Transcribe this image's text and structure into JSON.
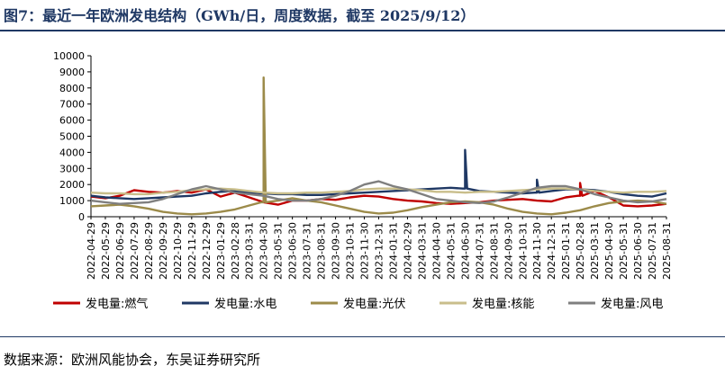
{
  "title": "图7：最近一年欧洲发电结构（GWh/日，周度数据，截至 2025/9/12）",
  "source": "数据来源：欧洲风能协会，东吴证券研究所",
  "chart_data": {
    "type": "line",
    "ylim": [
      0,
      10000
    ],
    "yticks": [
      "0",
      "1000",
      "2000",
      "3000",
      "4000",
      "5000",
      "6000",
      "7000",
      "8000",
      "9000",
      "10000"
    ],
    "x_tick_labels": [
      "2022-04-29",
      "2022-05-29",
      "2022-06-29",
      "2022-07-29",
      "2022-08-29",
      "2022-09-29",
      "2022-10-29",
      "2022-11-29",
      "2022-12-29",
      "2023-01-29",
      "2023-02-28",
      "2023-03-31",
      "2023-04-30",
      "2023-05-31",
      "2023-06-30",
      "2023-07-31",
      "2023-08-31",
      "2023-09-30",
      "2023-10-31",
      "2023-11-30",
      "2023-12-31",
      "2024-01-31",
      "2024-02-29",
      "2024-03-31",
      "2024-04-30",
      "2024-05-31",
      "2024-06-30",
      "2024-07-31",
      "2024-08-31",
      "2024-09-30",
      "2024-10-31",
      "2024-11-30",
      "2024-12-31",
      "2025-01-31",
      "2025-02-28",
      "2025-03-31",
      "2025-04-30",
      "2025-05-31",
      "2025-06-30",
      "2025-07-31",
      "2025-08-31"
    ],
    "legend_position": "bottom",
    "series": [
      {
        "name": "发电量:燃气",
        "color": "#C00000",
        "values": [
          1250,
          1150,
          1300,
          1650,
          1550,
          1500,
          1600,
          1500,
          1700,
          1250,
          1500,
          1200,
          900,
          750,
          1000,
          1000,
          1100,
          1050,
          1200,
          1300,
          1250,
          1100,
          1000,
          950,
          850,
          800,
          850,
          900,
          1000,
          1050,
          1100,
          1000,
          950,
          1200,
          1300,
          1600,
          1200,
          700,
          650,
          700,
          800
        ]
      },
      {
        "name": "发电量:水电",
        "color": "#1F3864",
        "values": [
          1300,
          1200,
          1150,
          1100,
          1150,
          1200,
          1250,
          1300,
          1450,
          1550,
          1600,
          1500,
          1450,
          1400,
          1400,
          1350,
          1350,
          1400,
          1450,
          1500,
          1550,
          1600,
          1650,
          1700,
          1750,
          1800,
          1750,
          1600,
          1550,
          1500,
          1450,
          1500,
          1600,
          1700,
          1700,
          1650,
          1550,
          1400,
          1300,
          1250,
          1450
        ]
      },
      {
        "name": "发电量:光伏",
        "color": "#9C8B4A",
        "values": [
          650,
          700,
          750,
          650,
          500,
          300,
          200,
          150,
          200,
          300,
          450,
          700,
          900,
          1000,
          1150,
          1000,
          900,
          700,
          500,
          300,
          200,
          250,
          400,
          600,
          750,
          900,
          950,
          900,
          750,
          500,
          300,
          200,
          150,
          250,
          400,
          650,
          850,
          950,
          1000,
          950,
          800
        ]
      },
      {
        "name": "发电量:核能",
        "color": "#C9BE8B",
        "values": [
          1500,
          1450,
          1450,
          1400,
          1400,
          1500,
          1550,
          1650,
          1700,
          1750,
          1700,
          1600,
          1500,
          1450,
          1450,
          1500,
          1500,
          1550,
          1600,
          1700,
          1750,
          1750,
          1700,
          1650,
          1550,
          1550,
          1500,
          1550,
          1550,
          1600,
          1650,
          1700,
          1750,
          1750,
          1700,
          1600,
          1550,
          1500,
          1550,
          1550,
          1600
        ]
      },
      {
        "name": "发电量:风电",
        "color": "#7F7F7F",
        "values": [
          1000,
          900,
          800,
          850,
          900,
          1100,
          1400,
          1700,
          1900,
          1700,
          1500,
          1400,
          1300,
          1100,
          1000,
          1000,
          1100,
          1300,
          1600,
          2000,
          2200,
          1900,
          1700,
          1400,
          1100,
          1000,
          900,
          850,
          950,
          1200,
          1500,
          1800,
          1900,
          1900,
          1700,
          1400,
          1200,
          1000,
          900,
          950,
          1100
        ]
      }
    ],
    "annotations": [
      {
        "series": "发电量:光伏",
        "x": "2023-04-30",
        "value": 8650
      },
      {
        "series": "发电量:水电",
        "x": "2024-06-30",
        "value": 4150
      },
      {
        "series": "发电量:水电",
        "x": "2024-11-30",
        "value": 2300
      },
      {
        "series": "发电量:燃气",
        "x": "2025-02-28",
        "value": 2100
      }
    ]
  }
}
